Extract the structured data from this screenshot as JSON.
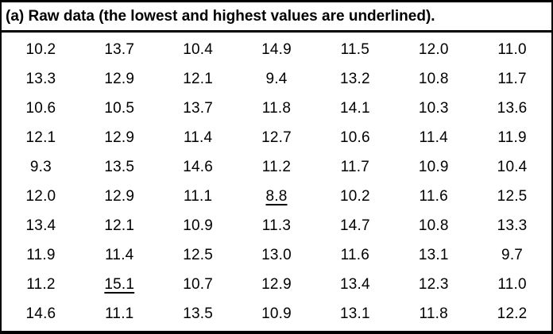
{
  "header": {
    "title": "(a) Raw data (the lowest and highest values are underlined)."
  },
  "table": {
    "rows": [
      [
        "10.2",
        "13.7",
        "10.4",
        "14.9",
        "11.5",
        "12.0",
        "11.0"
      ],
      [
        "13.3",
        "12.9",
        "12.1",
        "9.4",
        "13.2",
        "10.8",
        "11.7"
      ],
      [
        "10.6",
        "10.5",
        "13.7",
        "11.8",
        "14.1",
        "10.3",
        "13.6"
      ],
      [
        "12.1",
        "12.9",
        "11.4",
        "12.7",
        "10.6",
        "11.4",
        "11.9"
      ],
      [
        "9.3",
        "13.5",
        "14.6",
        "11.2",
        "11.7",
        "10.9",
        "10.4"
      ],
      [
        "12.0",
        "12.9",
        "11.1",
        "8.8",
        "10.2",
        "11.6",
        "12.5"
      ],
      [
        "13.4",
        "12.1",
        "10.9",
        "11.3",
        "14.7",
        "10.8",
        "13.3"
      ],
      [
        "11.9",
        "11.4",
        "12.5",
        "13.0",
        "11.6",
        "13.1",
        "9.7"
      ],
      [
        "11.2",
        "15.1",
        "10.7",
        "12.9",
        "13.4",
        "12.3",
        "11.0"
      ],
      [
        "14.6",
        "11.1",
        "13.5",
        "10.9",
        "13.1",
        "11.8",
        "12.2"
      ]
    ],
    "underlined_cells": [
      [
        5,
        3
      ],
      [
        8,
        1
      ]
    ],
    "lowest_value": "8.8",
    "highest_value": "15.1"
  },
  "colors": {
    "border": "#000000",
    "text": "#000000",
    "background": "#ffffff"
  }
}
